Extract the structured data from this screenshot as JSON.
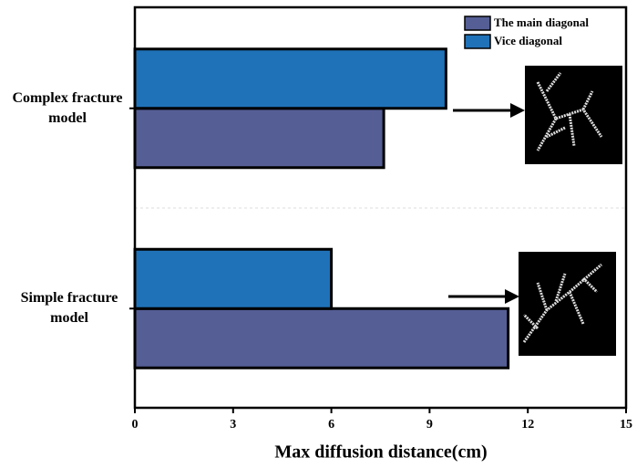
{
  "chart_data": {
    "type": "bar",
    "orientation": "horizontal",
    "x_label": "Max diffusion distance(cm)",
    "categories": [
      "Complex fracture model",
      "Simple fracture model"
    ],
    "series": [
      {
        "name": "The main diagonal",
        "color": "#555e95",
        "values": [
          7.6,
          11.4
        ]
      },
      {
        "name": "Vice diagonal",
        "color": "#1f72b8",
        "values": [
          9.5,
          6.0
        ]
      }
    ],
    "xlim": [
      0,
      15
    ],
    "xticks": [
      0,
      3,
      6,
      9,
      12,
      15
    ]
  }
}
